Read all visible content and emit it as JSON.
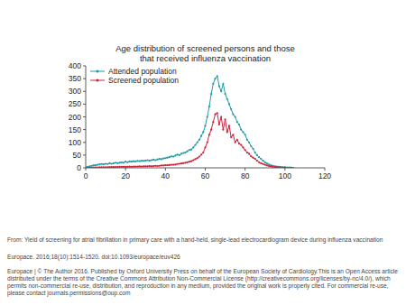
{
  "chart_data": {
    "type": "line",
    "title": [
      "Age distribution of screened persons and those",
      "that received influenza vaccination"
    ],
    "x": [
      0,
      1,
      2,
      3,
      4,
      5,
      6,
      7,
      8,
      9,
      10,
      11,
      12,
      13,
      14,
      15,
      16,
      17,
      18,
      19,
      20,
      21,
      22,
      23,
      24,
      25,
      26,
      27,
      28,
      29,
      30,
      31,
      32,
      33,
      34,
      35,
      36,
      37,
      38,
      39,
      40,
      41,
      42,
      43,
      44,
      45,
      46,
      47,
      48,
      49,
      50,
      51,
      52,
      53,
      54,
      55,
      56,
      57,
      58,
      59,
      60,
      61,
      62,
      63,
      64,
      65,
      66,
      67,
      68,
      69,
      70,
      71,
      72,
      73,
      74,
      75,
      76,
      77,
      78,
      79,
      80,
      81,
      82,
      83,
      84,
      85,
      86,
      87,
      88,
      89,
      90,
      91,
      92,
      93,
      94,
      95,
      96,
      97,
      98,
      99,
      100,
      101,
      102,
      103,
      104
    ],
    "series": [
      {
        "name": "Attended population",
        "color": "#1f9aa6",
        "marker": "circle",
        "values": [
          2,
          4,
          6,
          8,
          10,
          10,
          12,
          14,
          15,
          14,
          16,
          15,
          18,
          16,
          18,
          20,
          18,
          20,
          22,
          20,
          24,
          22,
          25,
          24,
          26,
          25,
          27,
          26,
          28,
          27,
          28,
          30,
          28,
          30,
          32,
          30,
          33,
          35,
          34,
          37,
          38,
          40,
          42,
          45,
          44,
          48,
          52,
          50,
          55,
          58,
          60,
          65,
          70,
          72,
          80,
          90,
          100,
          110,
          125,
          140,
          165,
          200,
          240,
          290,
          330,
          350,
          360,
          320,
          300,
          330,
          290,
          270,
          250,
          230,
          210,
          200,
          180,
          170,
          150,
          140,
          130,
          110,
          100,
          85,
          75,
          60,
          50,
          42,
          35,
          28,
          22,
          17,
          13,
          10,
          8,
          6,
          5,
          4,
          3,
          2,
          2,
          1,
          1,
          1,
          0
        ]
      },
      {
        "name": "Screened population",
        "color": "#d0213a",
        "marker": "circle",
        "values": [
          0,
          0,
          0,
          1,
          1,
          1,
          1,
          2,
          2,
          2,
          2,
          2,
          3,
          3,
          3,
          3,
          3,
          4,
          4,
          4,
          4,
          4,
          5,
          4,
          5,
          5,
          5,
          6,
          5,
          6,
          6,
          6,
          7,
          6,
          7,
          8,
          7,
          8,
          9,
          9,
          10,
          10,
          11,
          12,
          12,
          13,
          15,
          16,
          17,
          18,
          20,
          22,
          24,
          26,
          30,
          34,
          38,
          44,
          52,
          60,
          80,
          100,
          130,
          150,
          180,
          210,
          215,
          170,
          200,
          150,
          190,
          140,
          165,
          120,
          130,
          100,
          110,
          95,
          90,
          80,
          70,
          60,
          55,
          45,
          40,
          35,
          28,
          22,
          18,
          15,
          12,
          9,
          7,
          5,
          4,
          3,
          2,
          2,
          1,
          1,
          1,
          0,
          0,
          0,
          0
        ]
      }
    ],
    "xlim": [
      0,
      120
    ],
    "ylim": [
      0,
      400
    ],
    "xticks": [
      0,
      20,
      40,
      60,
      80,
      100,
      120
    ],
    "yticks": [
      0,
      50,
      100,
      150,
      200,
      250,
      300,
      350,
      400
    ],
    "grid": false,
    "legend": "upper left"
  },
  "source": {
    "from": "From: Yield of screening for atrial fibrillation in primary care with a hand-held, single-lead electrocardiogram device during influenza vaccination",
    "citation": "Europace. 2016;18(10):1514-1520. doi:10.1093/europace/euv426",
    "license": "Europace | © The Author 2016. Published by Oxford University Press on behalf of the European Society of Cardiology.This is an Open Access article distributed under the terms of the Creative Commons Attribution Non-Commercial License (http://creativecommons.org/licenses/by-nc/4.0/), which permits non-commercial re-use, distribution, and reproduction in any medium, provided the original work is properly cited. For commercial re-use, please contact journals.permissions@oup.com"
  }
}
